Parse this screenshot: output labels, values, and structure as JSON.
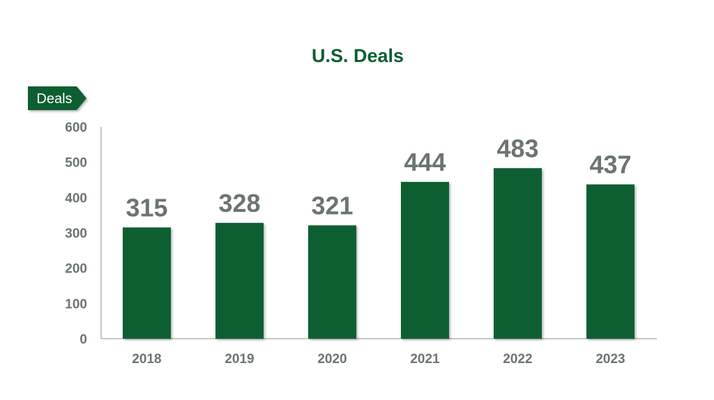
{
  "chart_data": {
    "type": "bar",
    "title": "U.S. Deals",
    "ylabel": "Deals",
    "xlabel": "",
    "categories": [
      "2018",
      "2019",
      "2020",
      "2021",
      "2022",
      "2023"
    ],
    "values": [
      315,
      328,
      321,
      444,
      483,
      437
    ],
    "ylim": [
      0,
      600
    ],
    "yticks": [
      0,
      100,
      200,
      300,
      400,
      500,
      600
    ],
    "grid": false,
    "legend": "none",
    "colors": {
      "bar": "#0b5e32",
      "text": "#6b7570",
      "title": "#0b5e32"
    }
  }
}
